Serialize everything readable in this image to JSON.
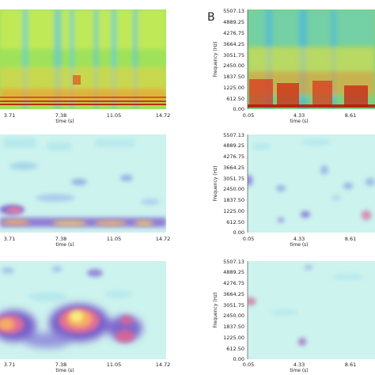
{
  "chart_data": [
    {
      "type": "heatmap",
      "panel": "left-top",
      "style": "spectrogram",
      "xlabel": "time (s)",
      "ylabel": "",
      "x_ticks": [
        "3.71",
        "7.38",
        "11.05",
        "14.72"
      ],
      "y_ticks": [],
      "xlim": [
        0,
        14.72
      ],
      "colormap": "jet",
      "hotspots": [
        {
          "x": 3.4,
          "y": 0.06,
          "intensity": 0.95
        },
        {
          "x": 7.6,
          "y": 0.12,
          "intensity": 0.9
        },
        {
          "x": 10.5,
          "y": 0.08,
          "intensity": 0.9
        },
        {
          "x": 13.6,
          "y": 0.07,
          "intensity": 0.85
        }
      ]
    },
    {
      "type": "heatmap",
      "panel": "right-top",
      "panel_label": "B",
      "style": "spectrogram",
      "xlabel": "time (s)",
      "ylabel": "Frequency (Hz)",
      "x_ticks": [
        "0.05",
        "4.33",
        "8.61"
      ],
      "y_ticks": [
        "0.00",
        "612.50",
        "1225.00",
        "1837.50",
        "2450.00",
        "3051.75",
        "3664.25",
        "4276.75",
        "4889.25",
        "5507.13"
      ],
      "colormap": "jet",
      "hotspots": [
        {
          "x": 1.2,
          "y": 300,
          "intensity": 0.95
        },
        {
          "x": 4.0,
          "y": 400,
          "intensity": 0.95
        },
        {
          "x": 7.0,
          "y": 350,
          "intensity": 0.9
        },
        {
          "x": 10.5,
          "y": 300,
          "intensity": 0.9
        }
      ]
    },
    {
      "type": "heatmap",
      "panel": "left-middle",
      "style": "sparse",
      "xlabel": "time (s)",
      "ylabel": "",
      "x_ticks": [
        "3.71",
        "7.38",
        "11.05",
        "14.72"
      ],
      "y_ticks": [],
      "colormap": "cool-warm",
      "hotspots": [
        {
          "x": 1.5,
          "y": 0.1,
          "intensity": 0.9
        },
        {
          "x": 6.0,
          "y": 0.08,
          "intensity": 0.8
        },
        {
          "x": 9.5,
          "y": 0.09,
          "intensity": 0.75
        },
        {
          "x": 13.0,
          "y": 0.08,
          "intensity": 0.7
        }
      ]
    },
    {
      "type": "heatmap",
      "panel": "right-middle",
      "style": "sparse",
      "xlabel": "time (s)",
      "ylabel": "Frequency (Hz)",
      "x_ticks": [
        "0.05",
        "4.33",
        "8.61"
      ],
      "y_ticks": [
        "0.00",
        "612.50",
        "1225.00",
        "1837.50",
        "2450.00",
        "3051.75",
        "3664.25",
        "4276.75",
        "4889.25",
        "5507.13"
      ],
      "colormap": "cool-warm",
      "hotspots": [
        {
          "x": 0.3,
          "y": 3300,
          "intensity": 0.7
        },
        {
          "x": 3.0,
          "y": 700,
          "intensity": 0.6
        },
        {
          "x": 5.5,
          "y": 500,
          "intensity": 0.6
        },
        {
          "x": 11.0,
          "y": 600,
          "intensity": 0.8
        }
      ]
    },
    {
      "type": "heatmap",
      "panel": "left-bottom",
      "style": "sparse",
      "xlabel": "time (s)",
      "ylabel": "",
      "x_ticks": [
        "3.71",
        "7.38",
        "11.05",
        "14.72"
      ],
      "y_ticks": [],
      "colormap": "cool-warm",
      "hotspots": [
        {
          "x": 0.8,
          "y": 0.2,
          "intensity": 0.95
        },
        {
          "x": 7.8,
          "y": 0.25,
          "intensity": 1.0
        },
        {
          "x": 12.0,
          "y": 0.25,
          "intensity": 0.7
        },
        {
          "x": 9.8,
          "y": 0.85,
          "intensity": 0.5
        }
      ]
    },
    {
      "type": "heatmap",
      "panel": "right-bottom",
      "style": "sparse",
      "xlabel": "time (s)",
      "ylabel": "Frequency (Hz)",
      "x_ticks": [
        "0.05",
        "4.33",
        "8.61"
      ],
      "y_ticks": [
        "0.00",
        "612.50",
        "1225.00",
        "1837.50",
        "2450.00",
        "3051.75",
        "3664.25",
        "4276.75",
        "4889.25",
        "5507.13"
      ],
      "colormap": "cool-warm",
      "hotspots": [
        {
          "x": 0.3,
          "y": 3000,
          "intensity": 0.85
        },
        {
          "x": 5.5,
          "y": 550,
          "intensity": 0.75
        }
      ]
    }
  ]
}
